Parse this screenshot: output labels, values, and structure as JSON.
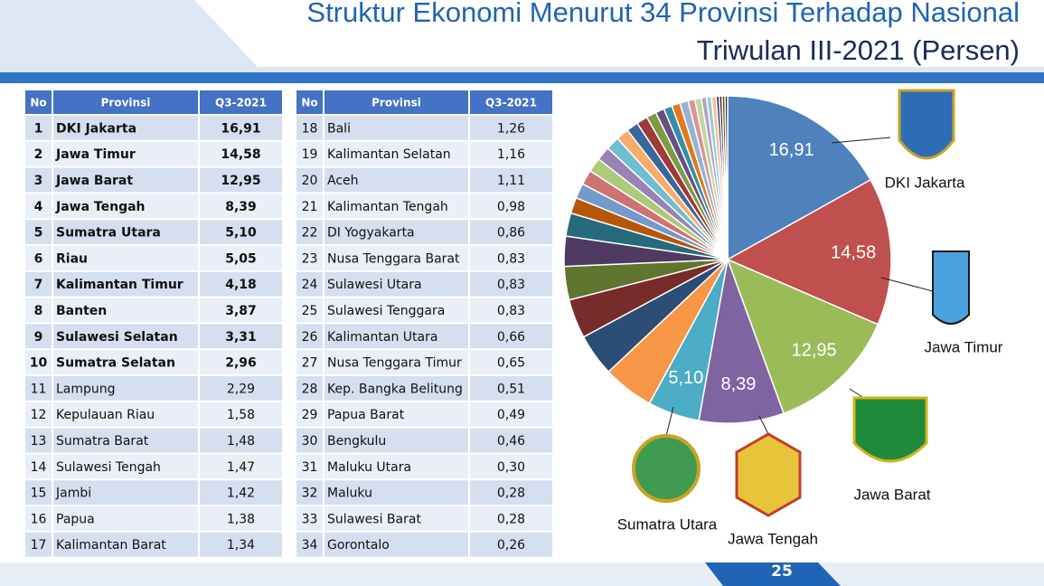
{
  "header": {
    "title": "Struktur Ekonomi Menurut 34 Provinsi Terhadap Nasional",
    "subtitle": "Triwulan III-2021 (Persen)"
  },
  "tables": [
    {
      "header": [
        "No",
        "Provinsi",
        "Q3-2021"
      ],
      "rows": [
        [
          "1",
          "DKI Jakarta",
          "16,91"
        ],
        [
          "2",
          "Jawa Timur",
          "14,58"
        ],
        [
          "3",
          "Jawa Barat",
          "12,95"
        ],
        [
          "4",
          "Jawa Tengah",
          "8,39"
        ],
        [
          "5",
          "Sumatra Utara",
          "5,10"
        ],
        [
          "6",
          "Riau",
          "5,05"
        ],
        [
          "7",
          "Kalimantan Timur",
          "4,18"
        ],
        [
          "8",
          "Banten",
          "3,87"
        ],
        [
          "9",
          "Sulawesi Selatan",
          "3,31"
        ],
        [
          "10",
          "Sumatra Selatan",
          "2,96"
        ],
        [
          "11",
          "Lampung",
          "2,29"
        ],
        [
          "12",
          "Kepulauan Riau",
          "1,58"
        ],
        [
          "13",
          "Sumatra Barat",
          "1,48"
        ],
        [
          "14",
          "Sulawesi Tengah",
          "1,47"
        ],
        [
          "15",
          "Jambi",
          "1,42"
        ],
        [
          "16",
          "Papua",
          "1,38"
        ],
        [
          "17",
          "Kalimantan Barat",
          "1,34"
        ]
      ]
    },
    {
      "header": [
        "No",
        "Provinsi",
        "Q3-2021"
      ],
      "rows": [
        [
          "18",
          "Bali",
          "1,26"
        ],
        [
          "19",
          "Kalimantan Selatan",
          "1,16"
        ],
        [
          "20",
          "Aceh",
          "1,11"
        ],
        [
          "21",
          "Kalimantan Tengah",
          "0,98"
        ],
        [
          "22",
          "DI Yogyakarta",
          "0,86"
        ],
        [
          "23",
          "Nusa Tenggara Barat",
          "0,83"
        ],
        [
          "24",
          "Sulawesi Utara",
          "0,83"
        ],
        [
          "25",
          "Sulawesi Tenggara",
          "0,83"
        ],
        [
          "26",
          "Kalimantan Utara",
          "0,66"
        ],
        [
          "27",
          "Nusa Tenggara Timur",
          "0,65"
        ],
        [
          "28",
          "Kep. Bangka Belitung",
          "0,51"
        ],
        [
          "29",
          "Papua Barat",
          "0,49"
        ],
        [
          "30",
          "Bengkulu",
          "0,46"
        ],
        [
          "31",
          "Maluku Utara",
          "0,30"
        ],
        [
          "32",
          "Maluku",
          "0,28"
        ],
        [
          "33",
          "Sulawesi Barat",
          "0,28"
        ],
        [
          "34",
          "Gorontalo",
          "0,26"
        ]
      ]
    }
  ],
  "chart_data": {
    "type": "pie",
    "categories": [
      "DKI Jakarta",
      "Jawa Timur",
      "Jawa Barat",
      "Jawa Tengah",
      "Sumatra Utara",
      null,
      null,
      null,
      null,
      null,
      null,
      null,
      null,
      null,
      null,
      null,
      null,
      null,
      null,
      null,
      null,
      null,
      null,
      null,
      null,
      null,
      null,
      null,
      null,
      null,
      null,
      null,
      null,
      null
    ],
    "values": [
      16.91,
      14.58,
      12.95,
      8.39,
      5.1,
      5.05,
      4.18,
      3.87,
      3.31,
      2.96,
      2.29,
      1.58,
      1.48,
      1.47,
      1.42,
      1.38,
      1.34,
      1.26,
      1.16,
      1.11,
      0.98,
      0.86,
      0.83,
      0.83,
      0.83,
      0.66,
      0.65,
      0.51,
      0.49,
      0.46,
      0.3,
      0.28,
      0.28,
      0.26
    ],
    "value_labels": [
      "16,91",
      "14,58",
      "12,95",
      "8,39",
      "5,10",
      null,
      null,
      null,
      null,
      null,
      null,
      null,
      null,
      null,
      null,
      null,
      null,
      null,
      null,
      null,
      null,
      null,
      null,
      null,
      null,
      null,
      null,
      null,
      null,
      null,
      null,
      null,
      null,
      null
    ],
    "colors": [
      "#4f81bd",
      "#c0504d",
      "#9bbb59",
      "#8064a2",
      "#4bacc6",
      "#f79646",
      "#2c4d75",
      "#772c2a",
      "#5f7530",
      "#4d3b62",
      "#276a7c",
      "#b65708",
      "#729aca",
      "#cd7371",
      "#afc97a",
      "#9983b5",
      "#6fbdd1",
      "#f9ab6b",
      "#3a679c",
      "#9d3b39",
      "#7d9b43",
      "#664f84",
      "#348ea5",
      "#e07a1e",
      "#95b3d7",
      "#d99694",
      "#c3d69b",
      "#b3a2c7",
      "#93cddd",
      "#fac08f",
      "#1f3a5a",
      "#5a2120",
      "#48582a",
      "#3a2c4a"
    ],
    "page_number": "25"
  }
}
